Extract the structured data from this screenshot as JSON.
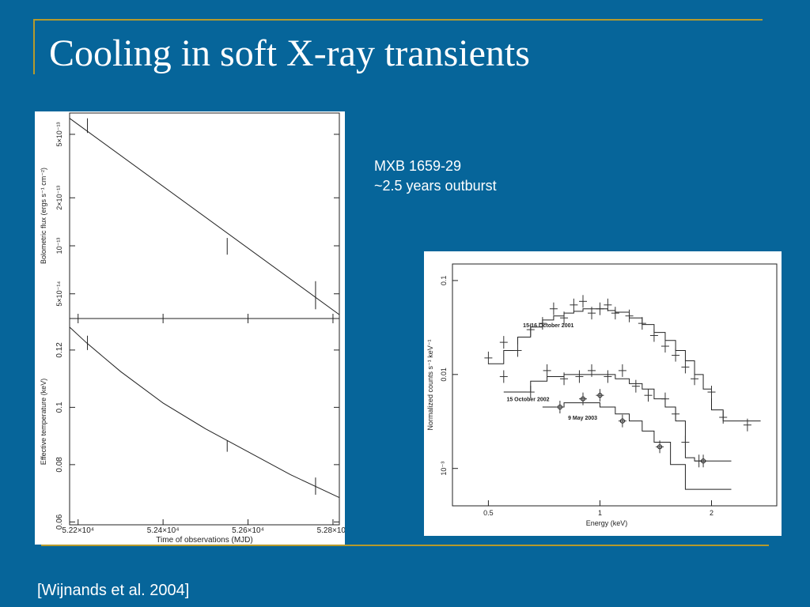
{
  "slide": {
    "title": "Cooling in soft X-ray transients",
    "caption_line1": "MXB 1659-29",
    "caption_line2": "~2.5 years outburst",
    "citation": "[Wijnands et al. 2004]"
  },
  "colors": {
    "background": "#06659a",
    "rule": "#b59a2c",
    "text": "#ffffff"
  },
  "chart_data": [
    {
      "type": "line",
      "ylabel": "Bolometric flux (ergs s⁻¹ cm⁻²)",
      "xlabel": "",
      "x_ticks": [
        52200,
        52400,
        52600,
        52800
      ],
      "y_ticks": [
        "5×10⁻¹⁴",
        "10⁻¹³",
        "2×10⁻¹³",
        "5×10⁻¹³"
      ],
      "y_scale": "log",
      "xlim": [
        52180,
        52815
      ],
      "ylim": [
        3.5e-14,
        6.8e-13
      ],
      "model": {
        "x": [
          52180,
          52815
        ],
        "y": [
          6.3e-13,
          3.7e-14
        ]
      },
      "points": [
        {
          "x": 52222,
          "y": 5.7e-13,
          "yerr": 6e-14
        },
        {
          "x": 52551,
          "y": 1e-13,
          "yerr": 1.2e-14
        },
        {
          "x": 52759,
          "y": 5e-14,
          "yerr": 1e-14
        }
      ]
    },
    {
      "type": "line",
      "ylabel": "Effective temperature (keV)",
      "xlabel": "Time of observations (MJD)",
      "x_ticks": [
        52200,
        52400,
        52600,
        52800
      ],
      "x_tick_labels": [
        "5.22×10⁴",
        "5.24×10⁴",
        "5.26×10⁴",
        "5.28×10⁴"
      ],
      "y_ticks": [
        0.06,
        0.08,
        0.1,
        0.12
      ],
      "y_tick_labels": [
        "0.06",
        "0.08",
        "0.1",
        "0.12"
      ],
      "xlim": [
        52180,
        52815
      ],
      "ylim": [
        0.059,
        0.131
      ],
      "model": {
        "x": [
          52180,
          52220,
          52300,
          52400,
          52500,
          52600,
          52700,
          52815
        ],
        "y": [
          0.128,
          0.1225,
          0.1125,
          0.1015,
          0.0925,
          0.0845,
          0.0765,
          0.0685
        ]
      },
      "points": [
        {
          "x": 52222,
          "y": 0.1225,
          "yerr": 0.0025
        },
        {
          "x": 52551,
          "y": 0.0865,
          "yerr": 0.002
        },
        {
          "x": 52759,
          "y": 0.0725,
          "yerr": 0.003
        }
      ]
    },
    {
      "type": "scatter",
      "ylabel": "Normalized counts s⁻¹ keV⁻¹",
      "xlabel": "Energy (keV)",
      "x_scale": "log",
      "y_scale": "log",
      "xlim": [
        0.4,
        3.0
      ],
      "ylim": [
        0.0004,
        0.15
      ],
      "x_ticks": [
        0.5,
        1,
        2
      ],
      "x_tick_labels": [
        "0.5",
        "1",
        "2"
      ],
      "y_ticks": [
        0.001,
        0.01,
        0.1
      ],
      "y_tick_labels": [
        "10⁻³",
        "0.01",
        "0.1"
      ],
      "series": [
        {
          "name": "15-16 October 2001",
          "model": {
            "x": [
              0.5,
              0.55,
              0.6,
              0.65,
              0.7,
              0.75,
              0.8,
              0.85,
              0.9,
              0.95,
              1.0,
              1.05,
              1.1,
              1.2,
              1.3,
              1.4,
              1.5,
              1.6,
              1.7,
              1.8,
              1.9,
              2.0,
              2.15,
              2.4
            ],
            "y": [
              0.013,
              0.018,
              0.025,
              0.032,
              0.038,
              0.042,
              0.045,
              0.047,
              0.05,
              0.05,
              0.05,
              0.048,
              0.046,
              0.04,
              0.034,
              0.028,
              0.023,
              0.018,
              0.014,
              0.01,
              0.007,
              0.0042,
              0.0032,
              0.0032
            ]
          },
          "points": [
            {
              "x": 0.5,
              "y": 0.015
            },
            {
              "x": 0.55,
              "y": 0.022
            },
            {
              "x": 0.6,
              "y": 0.018
            },
            {
              "x": 0.65,
              "y": 0.03
            },
            {
              "x": 0.7,
              "y": 0.035
            },
            {
              "x": 0.75,
              "y": 0.05
            },
            {
              "x": 0.8,
              "y": 0.04
            },
            {
              "x": 0.85,
              "y": 0.055
            },
            {
              "x": 0.9,
              "y": 0.06
            },
            {
              "x": 0.95,
              "y": 0.045
            },
            {
              "x": 1.0,
              "y": 0.05
            },
            {
              "x": 1.05,
              "y": 0.055
            },
            {
              "x": 1.1,
              "y": 0.045
            },
            {
              "x": 1.2,
              "y": 0.042
            },
            {
              "x": 1.3,
              "y": 0.035
            },
            {
              "x": 1.4,
              "y": 0.026
            },
            {
              "x": 1.5,
              "y": 0.02
            },
            {
              "x": 1.6,
              "y": 0.016
            },
            {
              "x": 1.7,
              "y": 0.012
            },
            {
              "x": 1.8,
              "y": 0.009
            },
            {
              "x": 2.0,
              "y": 0.0065
            },
            {
              "x": 2.15,
              "y": 0.0035
            },
            {
              "x": 2.5,
              "y": 0.0029
            }
          ]
        },
        {
          "name": "15 October 2002",
          "model": {
            "x": [
              0.55,
              0.65,
              0.72,
              0.8,
              0.9,
              1.0,
              1.1,
              1.2,
              1.3,
              1.4,
              1.5,
              1.6,
              1.7,
              1.8,
              2.0
            ],
            "y": [
              0.0065,
              0.0085,
              0.0095,
              0.01,
              0.01,
              0.01,
              0.009,
              0.008,
              0.007,
              0.0055,
              0.0045,
              0.0032,
              0.0013,
              0.0012,
              0.0012
            ]
          },
          "points": [
            {
              "x": 0.55,
              "y": 0.0095
            },
            {
              "x": 0.65,
              "y": 0.0065
            },
            {
              "x": 0.72,
              "y": 0.011
            },
            {
              "x": 0.8,
              "y": 0.009
            },
            {
              "x": 0.88,
              "y": 0.0095
            },
            {
              "x": 0.95,
              "y": 0.011
            },
            {
              "x": 1.05,
              "y": 0.0095
            },
            {
              "x": 1.15,
              "y": 0.011
            },
            {
              "x": 1.25,
              "y": 0.0075
            },
            {
              "x": 1.35,
              "y": 0.006
            },
            {
              "x": 1.5,
              "y": 0.0055
            },
            {
              "x": 1.6,
              "y": 0.0038
            },
            {
              "x": 1.7,
              "y": 0.0019
            },
            {
              "x": 1.85,
              "y": 0.0012
            }
          ]
        },
        {
          "name": "9 May 2003",
          "model": {
            "x": [
              0.7,
              0.8,
              0.9,
              1.0,
              1.1,
              1.2,
              1.3,
              1.4,
              1.55,
              1.7,
              2.0
            ],
            "y": [
              0.0045,
              0.005,
              0.005,
              0.0045,
              0.0038,
              0.0032,
              0.0025,
              0.0019,
              0.0011,
              0.0006,
              0.0006
            ]
          },
          "points": [
            {
              "x": 0.78,
              "y": 0.0045
            },
            {
              "x": 0.9,
              "y": 0.0055
            },
            {
              "x": 1.0,
              "y": 0.006
            },
            {
              "x": 1.15,
              "y": 0.0032
            },
            {
              "x": 1.45,
              "y": 0.0017
            },
            {
              "x": 1.9,
              "y": 0.0012
            }
          ]
        }
      ]
    }
  ]
}
